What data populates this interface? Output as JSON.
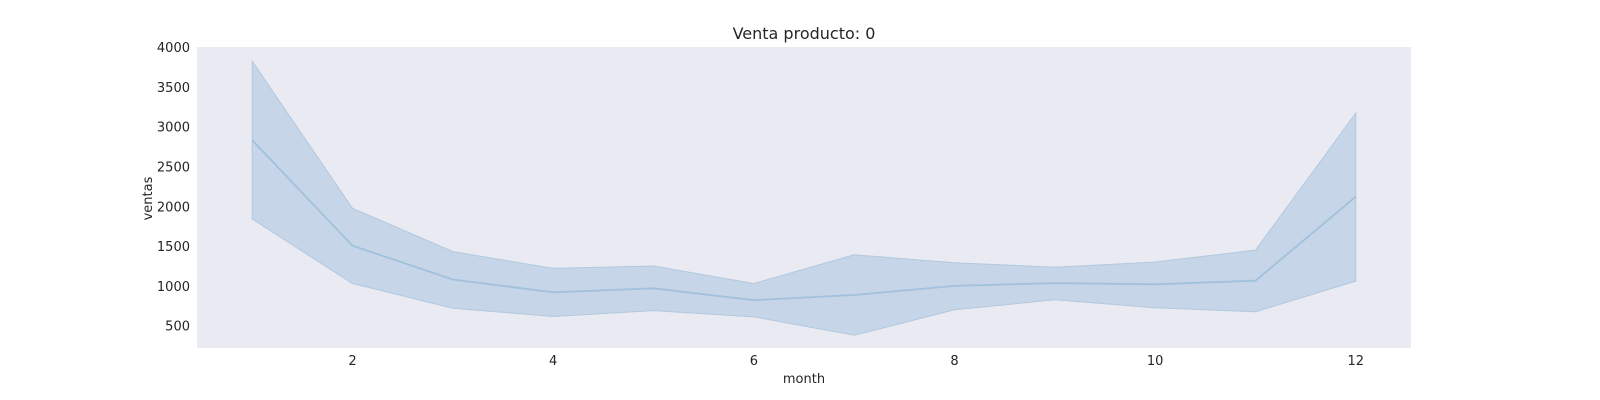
{
  "chart_data": {
    "type": "line",
    "title": "Venta producto: 0",
    "xlabel": "month",
    "ylabel": "ventas",
    "xlim": [
      0.45,
      12.55
    ],
    "ylim": [
      220,
      4000
    ],
    "x_ticks": [
      2,
      4,
      6,
      8,
      10,
      12
    ],
    "y_ticks": [
      500,
      1000,
      1500,
      2000,
      2500,
      3000,
      3500,
      4000
    ],
    "grid": false,
    "series": [
      {
        "x": [
          1,
          2,
          3,
          4,
          5,
          6,
          7,
          8,
          9,
          10,
          11,
          12
        ],
        "values": [
          2830,
          1505,
          1080,
          920,
          970,
          820,
          885,
          1000,
          1035,
          1020,
          1065,
          2120
        ],
        "lower": [
          1840,
          1030,
          720,
          615,
          690,
          610,
          380,
          700,
          825,
          725,
          675,
          1060
        ],
        "upper": [
          3820,
          1975,
          1430,
          1220,
          1250,
          1030,
          1390,
          1290,
          1235,
          1300,
          1450,
          3170
        ]
      }
    ],
    "colors": {
      "plot_bg": "#eaeaf2",
      "line": "#a2c1dc",
      "band": "#c2d3e5",
      "band_edge": "#b2c9df"
    }
  }
}
